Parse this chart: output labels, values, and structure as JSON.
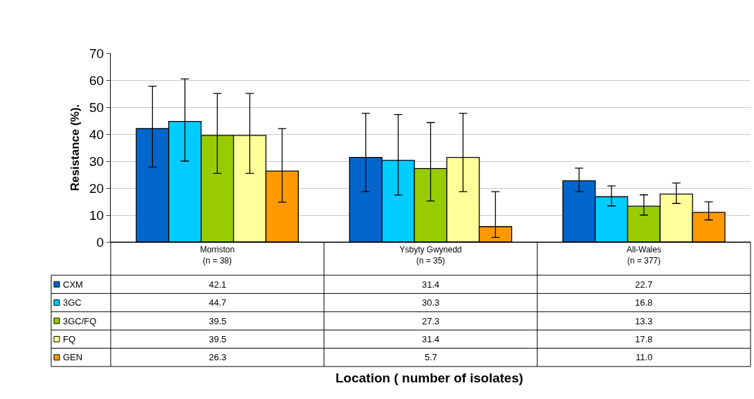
{
  "chart_data": {
    "type": "bar",
    "ylabel": "Resistance (%).",
    "annotations": [
      "Location ( number of isolates)"
    ],
    "categories": [
      "Morriston\n(n = 38)",
      "Ysbyty Gwynedd\n(n = 35)",
      "All-Wales\n(n = 377)"
    ],
    "series": [
      {
        "name": "CXM",
        "color": "#0066cc",
        "values": [
          42.1,
          31.4,
          22.7
        ],
        "value_labels": [
          "42.1",
          "31.4",
          "22.7"
        ],
        "errors": [
          [
            27.8,
            57.8
          ],
          [
            18.7,
            47.7
          ],
          [
            18.7,
            27.4
          ]
        ]
      },
      {
        "name": "3GC",
        "color": "#00ccff",
        "values": [
          44.7,
          30.3,
          16.8
        ],
        "value_labels": [
          "44.7",
          "30.3",
          "16.8"
        ],
        "errors": [
          [
            30.0,
            60.5
          ],
          [
            17.4,
            47.3
          ],
          [
            13.4,
            20.8
          ]
        ]
      },
      {
        "name": "3GC/FQ",
        "color": "#99cc00",
        "values": [
          39.5,
          27.3,
          13.3
        ],
        "value_labels": [
          "39.5",
          "27.3",
          "13.3"
        ],
        "errors": [
          [
            25.5,
            55.1
          ],
          [
            15.2,
            44.3
          ],
          [
            10.0,
            17.5
          ]
        ]
      },
      {
        "name": "FQ",
        "color": "#ffff99",
        "values": [
          39.5,
          31.4,
          17.8
        ],
        "value_labels": [
          "39.5",
          "31.4",
          "17.8"
        ],
        "errors": [
          [
            25.5,
            55.1
          ],
          [
            18.7,
            47.7
          ],
          [
            14.3,
            21.9
          ]
        ]
      },
      {
        "name": "GEN",
        "color": "#ff9900",
        "values": [
          26.3,
          5.7,
          11.0
        ],
        "value_labels": [
          "26.3",
          "5.7",
          "11.0"
        ],
        "errors": [
          [
            14.8,
            42.1
          ],
          [
            1.7,
            18.7
          ],
          [
            8.2,
            14.9
          ]
        ]
      }
    ],
    "ylim": [
      0,
      70
    ],
    "yticks": [
      0,
      10,
      20,
      30,
      40,
      50,
      60,
      70
    ],
    "grid": "y",
    "legend": "bottom left"
  }
}
